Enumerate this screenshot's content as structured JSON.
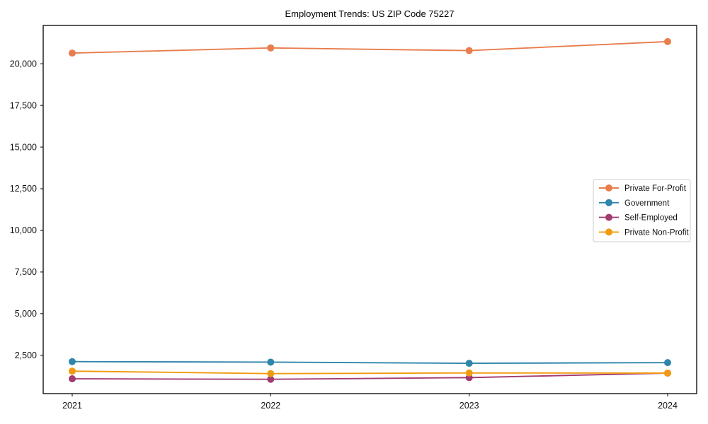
{
  "title": "Employment Trends: US ZIP Code 75227",
  "chart_data": {
    "type": "line",
    "title": "Employment Trends: US ZIP Code 75227",
    "xlabel": "",
    "ylabel": "",
    "categories": [
      "2021",
      "2022",
      "2023",
      "2024"
    ],
    "series": [
      {
        "name": "Private For-Profit",
        "color": "#e87d4e",
        "values": [
          20640,
          20950,
          20790,
          21330
        ]
      },
      {
        "name": "Government",
        "color": "#2e86ab",
        "values": [
          2120,
          2090,
          2020,
          2060
        ]
      },
      {
        "name": "Self-Employed",
        "color": "#a23b72",
        "values": [
          1090,
          1060,
          1160,
          1430
        ]
      },
      {
        "name": "Private Non-Profit",
        "color": "#f09b0f",
        "values": [
          1550,
          1400,
          1440,
          1430
        ]
      }
    ],
    "yticks": [
      2500,
      5000,
      7500,
      10000,
      12500,
      15000,
      17500,
      20000
    ],
    "ytick_labels": [
      "2,500",
      "5,000",
      "7,500",
      "10,000",
      "12,500",
      "15,000",
      "17,500",
      "20,000"
    ],
    "ylim": [
      200,
      22300
    ],
    "grid": false,
    "marker": "circle",
    "legend_position": "center-right",
    "axis_color": "#000000",
    "legend_border_color": "#cccccc",
    "background_color": "#ffffff"
  }
}
